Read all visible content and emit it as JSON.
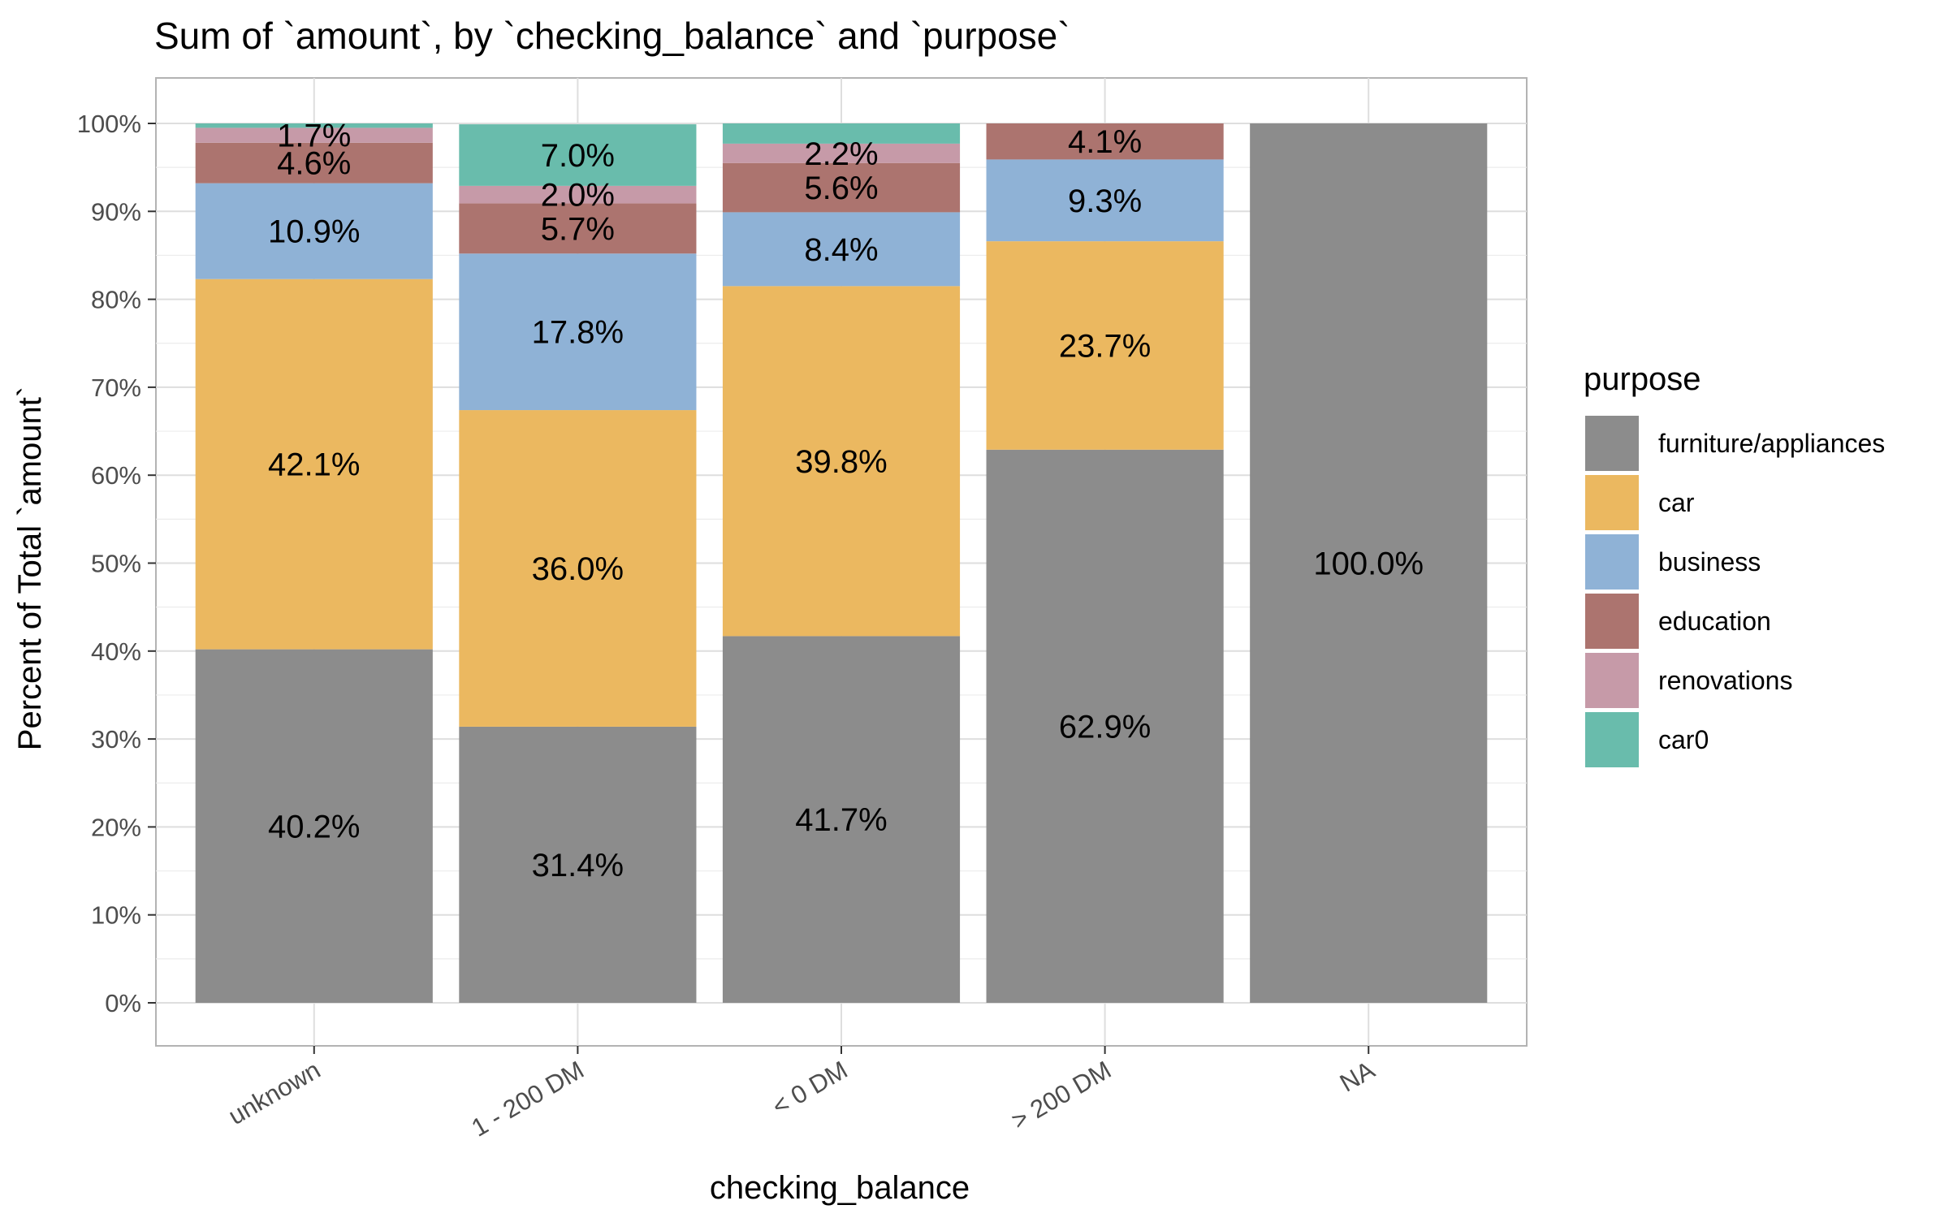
{
  "chart_data": {
    "type": "bar",
    "stacked": true,
    "normalized": true,
    "title": "Sum of `amount`, by `checking_balance` and `purpose`",
    "xlabel": "checking_balance",
    "ylabel": "Percent of Total `amount`",
    "ylim": [
      0,
      100
    ],
    "yticks": [
      "0%",
      "10%",
      "20%",
      "30%",
      "40%",
      "50%",
      "60%",
      "70%",
      "80%",
      "90%",
      "100%"
    ],
    "grid": true,
    "legend_position": "right",
    "legend_title": "purpose",
    "categories": [
      "unknown",
      "1 - 200 DM",
      "< 0 DM",
      "> 200 DM",
      "NA"
    ],
    "series": [
      {
        "name": "furniture/appliances",
        "color": "#8c8c8c",
        "values": [
          40.2,
          31.4,
          41.7,
          62.9,
          100.0
        ],
        "labels": [
          "40.2%",
          "31.4%",
          "41.7%",
          "62.9%",
          "100.0%"
        ]
      },
      {
        "name": "car",
        "color": "#ebb860",
        "values": [
          42.1,
          36.0,
          39.8,
          23.7,
          0
        ],
        "labels": [
          "42.1%",
          "36.0%",
          "39.8%",
          "23.7%",
          ""
        ]
      },
      {
        "name": "business",
        "color": "#8fb2d6",
        "values": [
          10.9,
          17.8,
          8.4,
          9.3,
          0
        ],
        "labels": [
          "10.9%",
          "17.8%",
          "8.4%",
          "9.3%",
          ""
        ]
      },
      {
        "name": "education",
        "color": "#ac746f",
        "values": [
          4.6,
          5.7,
          5.6,
          4.1,
          0
        ],
        "labels": [
          "4.6%",
          "5.7%",
          "5.6%",
          "4.1%",
          ""
        ]
      },
      {
        "name": "renovations",
        "color": "#c69aa8",
        "values": [
          1.7,
          2.0,
          2.2,
          0,
          0
        ],
        "labels": [
          "1.7%",
          "2.0%",
          "2.2%",
          "",
          ""
        ]
      },
      {
        "name": "car0",
        "color": "#69bcac",
        "values": [
          0.5,
          7.0,
          2.3,
          0,
          0
        ],
        "labels": [
          "",
          "7.0%",
          "",
          "",
          ""
        ]
      }
    ]
  }
}
